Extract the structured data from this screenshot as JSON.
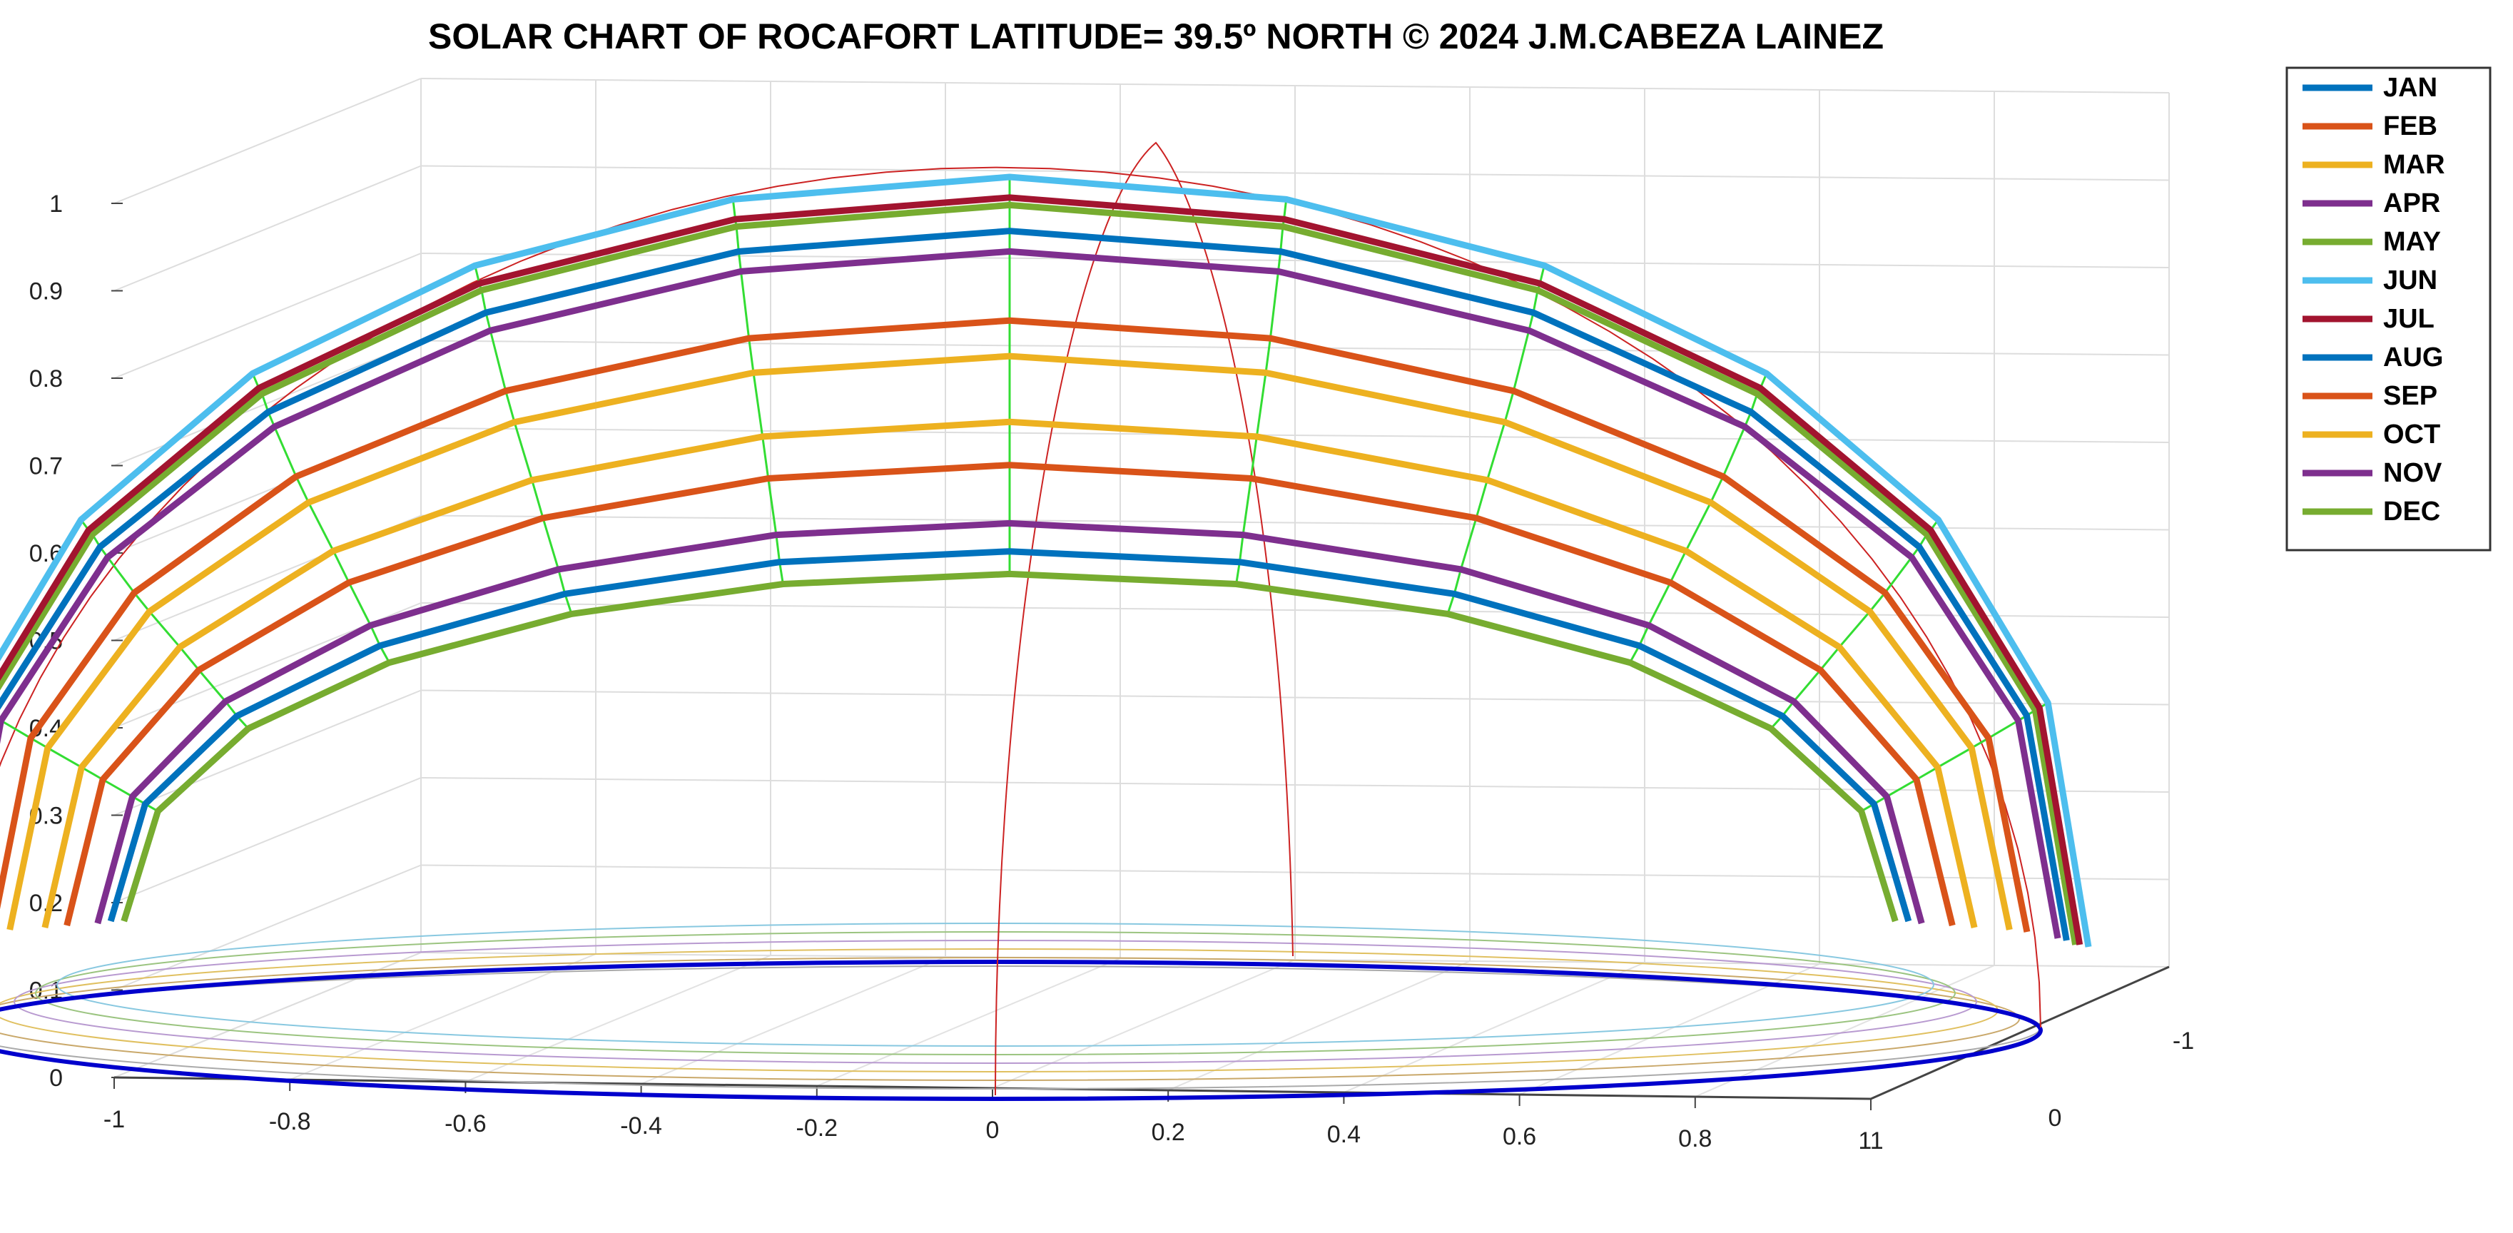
{
  "chart_data": {
    "type": "line",
    "title": "SOLAR CHART OF ROCAFORT LATITUDE= 39.5º NORTH  © 2024 J.M.CABEZA LAINEZ",
    "projection": "3d",
    "grid": true,
    "legend_placement": "top-right outside",
    "xlim": [
      -1,
      1
    ],
    "ylim": [
      -1,
      1
    ],
    "zlim": [
      0,
      1
    ],
    "xticks": [
      "-1",
      "-0.8",
      "-0.6",
      "-0.4",
      "-0.2",
      "0",
      "0.2",
      "0.4",
      "0.6",
      "0.8",
      "11"
    ],
    "yticks": [
      "-1",
      "0"
    ],
    "zticks": [
      "0",
      "0.1",
      "0.2",
      "0.3",
      "0.4",
      "0.5",
      "0.6",
      "0.7",
      "0.8",
      "0.9",
      "1"
    ],
    "series": [
      {
        "name": "JAN",
        "color": "#0072BD",
        "max_altitude": 0.62,
        "base": 0.13
      },
      {
        "name": "FEB",
        "color": "#D95319",
        "max_altitude": 0.72,
        "base": 0.11
      },
      {
        "name": "MAR",
        "color": "#EDB120",
        "max_altitude": 0.85,
        "base": 0.09
      },
      {
        "name": "APR",
        "color": "#7E2F8E",
        "max_altitude": 0.96,
        "base": 0.05
      },
      {
        "name": "MAY",
        "color": "#77AC30",
        "max_altitude": 1.0,
        "base": 0.02
      },
      {
        "name": "JUN",
        "color": "#4DBEEE",
        "max_altitude": 1.03,
        "base": 0.01
      },
      {
        "name": "JUL",
        "color": "#A2142F",
        "max_altitude": 1.01,
        "base": 0.02
      },
      {
        "name": "AUG",
        "color": "#0072BD",
        "max_altitude": 0.98,
        "base": 0.04
      },
      {
        "name": "SEP",
        "color": "#D95319",
        "max_altitude": 0.89,
        "base": 0.08
      },
      {
        "name": "OCT",
        "color": "#EDB120",
        "max_altitude": 0.77,
        "base": 0.1
      },
      {
        "name": "NOV",
        "color": "#7E2F8E",
        "max_altitude": 0.65,
        "base": 0.12
      },
      {
        "name": "DEC",
        "color": "#77AC30",
        "max_altitude": 0.59,
        "base": 0.13
      }
    ],
    "hour_line_color": "#33DD33",
    "meridian_color": "#CC2222",
    "horizon_color": "#0000CC"
  }
}
